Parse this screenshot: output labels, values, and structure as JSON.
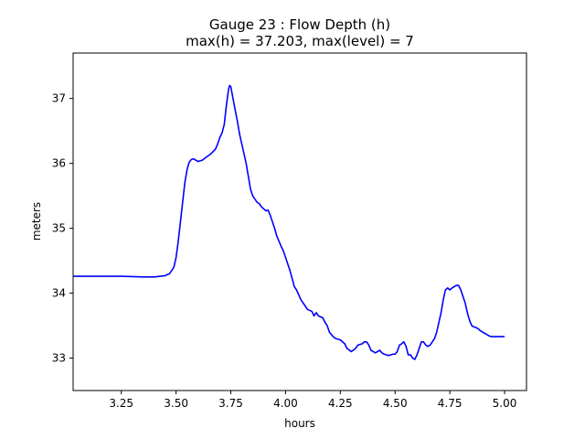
{
  "chart_data": {
    "type": "line",
    "title_line1": "Gauge 23 : Flow Depth (h)",
    "title_line2": "max(h) =  37.203,    max(level) = 7",
    "xlabel": "hours",
    "ylabel": "meters",
    "xlim": [
      3.03,
      5.1
    ],
    "ylim": [
      32.5,
      37.7
    ],
    "xticks": [
      3.25,
      3.5,
      3.75,
      4.0,
      4.25,
      4.5,
      4.75,
      5.0
    ],
    "xtick_labels": [
      "3.25",
      "3.50",
      "3.75",
      "4.00",
      "4.25",
      "4.50",
      "4.75",
      "5.00"
    ],
    "yticks": [
      33,
      34,
      35,
      36,
      37
    ],
    "ytick_labels": [
      "33",
      "34",
      "35",
      "36",
      "37"
    ],
    "grid": false,
    "series": [
      {
        "color": "#0000ff",
        "x": [
          3.03,
          3.1,
          3.2,
          3.25,
          3.35,
          3.4,
          3.45,
          3.47,
          3.49,
          3.5,
          3.51,
          3.52,
          3.53,
          3.54,
          3.55,
          3.56,
          3.57,
          3.58,
          3.59,
          3.6,
          3.62,
          3.64,
          3.66,
          3.68,
          3.69,
          3.7,
          3.71,
          3.72,
          3.73,
          3.74,
          3.745,
          3.75,
          3.76,
          3.77,
          3.78,
          3.79,
          3.8,
          3.81,
          3.82,
          3.83,
          3.84,
          3.85,
          3.86,
          3.87,
          3.88,
          3.89,
          3.9,
          3.91,
          3.92,
          3.93,
          3.94,
          3.95,
          3.96,
          3.97,
          3.98,
          3.99,
          4.0,
          4.02,
          4.04,
          4.05,
          4.07,
          4.09,
          4.1,
          4.12,
          4.13,
          4.14,
          4.15,
          4.17,
          4.18,
          4.19,
          4.2,
          4.22,
          4.23,
          4.25,
          4.27,
          4.28,
          4.3,
          4.32,
          4.33,
          4.35,
          4.36,
          4.37,
          4.38,
          4.39,
          4.4,
          4.41,
          4.42,
          4.43,
          4.44,
          4.45,
          4.46,
          4.47,
          4.48,
          4.49,
          4.5,
          4.51,
          4.52,
          4.53,
          4.54,
          4.55,
          4.56,
          4.57,
          4.58,
          4.59,
          4.6,
          4.61,
          4.62,
          4.63,
          4.64,
          4.65,
          4.66,
          4.67,
          4.68,
          4.69,
          4.7,
          4.71,
          4.72,
          4.73,
          4.74,
          4.75,
          4.76,
          4.77,
          4.78,
          4.79,
          4.8,
          4.81,
          4.82,
          4.83,
          4.84,
          4.85,
          4.86,
          4.87,
          4.88,
          4.89,
          4.9,
          4.91,
          4.92,
          4.93,
          4.94,
          4.95,
          4.96,
          4.97,
          4.98,
          4.99,
          5.0
        ],
        "y": [
          34.26,
          34.26,
          34.26,
          34.26,
          34.25,
          34.25,
          34.27,
          34.3,
          34.4,
          34.55,
          34.8,
          35.1,
          35.4,
          35.7,
          35.9,
          36.02,
          36.06,
          36.07,
          36.05,
          36.03,
          36.05,
          36.1,
          36.15,
          36.22,
          36.3,
          36.4,
          36.47,
          36.6,
          36.9,
          37.15,
          37.2,
          37.18,
          37.0,
          36.82,
          36.65,
          36.45,
          36.3,
          36.15,
          36.0,
          35.8,
          35.6,
          35.5,
          35.45,
          35.4,
          35.38,
          35.33,
          35.3,
          35.27,
          35.28,
          35.2,
          35.1,
          35.0,
          34.88,
          34.8,
          34.72,
          34.65,
          34.55,
          34.35,
          34.1,
          34.05,
          33.9,
          33.8,
          33.75,
          33.72,
          33.65,
          33.7,
          33.65,
          33.62,
          33.55,
          33.5,
          33.4,
          33.32,
          33.3,
          33.28,
          33.22,
          33.15,
          33.1,
          33.15,
          33.2,
          33.22,
          33.25,
          33.25,
          33.2,
          33.12,
          33.1,
          33.08,
          33.1,
          33.12,
          33.08,
          33.06,
          33.05,
          33.04,
          33.05,
          33.06,
          33.06,
          33.1,
          33.2,
          33.22,
          33.25,
          33.18,
          33.05,
          33.05,
          33.0,
          32.98,
          33.05,
          33.15,
          33.25,
          33.25,
          33.2,
          33.18,
          33.2,
          33.25,
          33.3,
          33.4,
          33.55,
          33.7,
          33.9,
          34.05,
          34.08,
          34.05,
          34.08,
          34.1,
          34.12,
          34.12,
          34.05,
          33.95,
          33.85,
          33.7,
          33.58,
          33.5,
          33.48,
          33.47,
          33.45,
          33.42,
          33.4,
          33.38,
          33.36,
          33.34,
          33.33,
          33.33,
          33.33,
          33.33,
          33.33,
          33.33,
          33.33
        ]
      }
    ]
  }
}
